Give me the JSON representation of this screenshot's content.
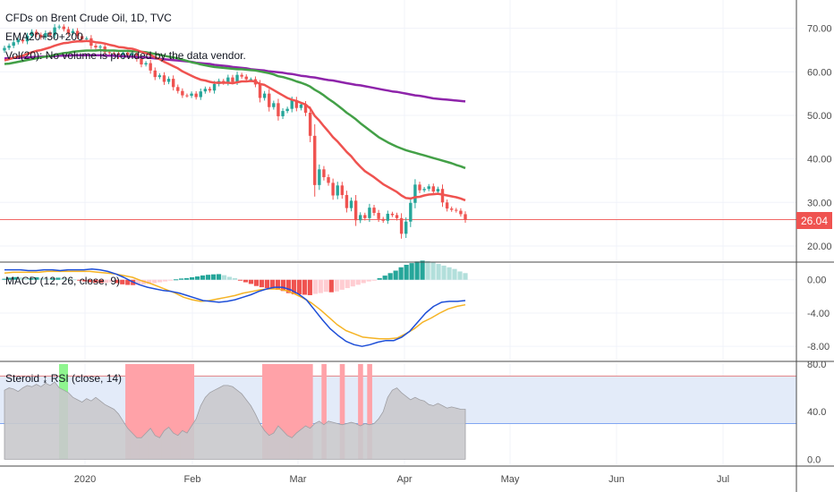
{
  "header": {
    "symbol": "CFDs on Brent Crude Oil, 1D, TVC",
    "ema_label": "EMA20+50+200",
    "vol_label": "Vol(20): No volume is provided by the data vendor."
  },
  "macd_label": "MACD (12, 26, close, 9)",
  "rsi_label": "Steroid ↨ RSI (close, 14)",
  "last_price": "26.04",
  "colors": {
    "up": "#26a69a",
    "down": "#ef5350",
    "ema20": "#ef5350",
    "ema50": "#43a047",
    "ema200": "#8e24aa",
    "macd": "#1e4fd8",
    "signal": "#f5b324",
    "hist_up": "#26a69a",
    "hist_up_fade": "#b2dfdb",
    "hist_down": "#ef5350",
    "hist_down_fade": "#ffcdd2",
    "rsi_fill": "#c9c9cc",
    "rsi_band": "#e3ebf9",
    "rsi_green": "#8ff58f",
    "rsi_red": "#ffa2a8"
  },
  "chart_data": [
    {
      "type": "candlestick",
      "title": "CFDs on Brent Crude Oil, 1D, TVC",
      "x_ticks": [
        "2020",
        "Feb",
        "Mar",
        "Apr",
        "May",
        "Jun",
        "Jul"
      ],
      "y_ticks": [
        20.0,
        30.0,
        40.0,
        50.0,
        60.0,
        70.0
      ],
      "ylim": [
        16.5,
        76.5
      ],
      "last_price": 26.04,
      "close": [
        65.5,
        66.0,
        66.8,
        67.4,
        67.0,
        68.3,
        69.2,
        68.5,
        67.9,
        68.9,
        68.4,
        70.2,
        70.4,
        69.8,
        68.9,
        69.4,
        68.2,
        67.5,
        67.7,
        66.0,
        65.6,
        65.8,
        64.5,
        64.3,
        64.2,
        63.5,
        64.4,
        63.8,
        64.3,
        63.0,
        61.7,
        62.0,
        60.3,
        58.8,
        59.2,
        57.7,
        58.4,
        56.5,
        55.6,
        54.6,
        54.5,
        55.0,
        54.2,
        55.5,
        56.1,
        55.7,
        57.2,
        57.9,
        57.5,
        58.7,
        57.7,
        59.3,
        58.9,
        58.3,
        58.3,
        57.1,
        54.0,
        55.0,
        51.9,
        52.8,
        49.8,
        51.0,
        51.5,
        53.5,
        51.7,
        52.5,
        50.6,
        45.3,
        34.0,
        37.6,
        35.8,
        34.5,
        31.6,
        33.9,
        31.7,
        28.7,
        30.4,
        25.9,
        27.1,
        26.4,
        28.8,
        27.6,
        26.2,
        25.8,
        27.4,
        27.1,
        26.4,
        22.8,
        25.6,
        29.9,
        34.1,
        32.8,
        33.1,
        33.7,
        32.5,
        33.1,
        30.0,
        28.6,
        28.3,
        28.1,
        27.3,
        26.0
      ],
      "ema20": [
        62.6,
        62.9,
        63.2,
        63.5,
        63.7,
        64.1,
        64.5,
        64.8,
        65.0,
        65.3,
        65.6,
        66.0,
        66.3,
        66.6,
        66.7,
        66.9,
        67.0,
        67.0,
        67.1,
        67.0,
        66.8,
        66.7,
        66.5,
        66.2,
        66.0,
        65.7,
        65.6,
        65.4,
        65.3,
        65.0,
        64.6,
        64.3,
        63.9,
        63.3,
        62.9,
        62.3,
        61.8,
        61.3,
        60.8,
        60.1,
        59.6,
        59.1,
        58.6,
        58.2,
        58.0,
        57.7,
        57.5,
        57.5,
        57.5,
        57.5,
        57.4,
        57.6,
        57.8,
        57.8,
        57.9,
        57.8,
        57.2,
        57.0,
        56.4,
        55.8,
        55.2,
        54.6,
        54.0,
        53.6,
        53.3,
        52.9,
        52.5,
        51.6,
        49.9,
        48.8,
        47.5,
        46.3,
        45.0,
        44.0,
        42.8,
        41.6,
        40.6,
        39.3,
        38.2,
        37.2,
        36.5,
        35.8,
        35.0,
        34.2,
        33.6,
        33.0,
        32.4,
        31.6,
        31.0,
        30.9,
        31.2,
        31.3,
        31.6,
        31.8,
        31.9,
        32.0,
        31.8,
        31.6,
        31.4,
        31.2,
        30.9,
        30.5
      ],
      "ema50": [
        61.8,
        61.9,
        62.1,
        62.3,
        62.5,
        62.7,
        62.9,
        63.1,
        63.3,
        63.5,
        63.6,
        63.9,
        64.1,
        64.3,
        64.4,
        64.6,
        64.7,
        64.8,
        64.9,
        64.9,
        64.9,
        65.0,
        64.9,
        64.9,
        64.9,
        64.8,
        64.8,
        64.8,
        64.7,
        64.7,
        64.6,
        64.5,
        64.3,
        64.1,
        63.9,
        63.7,
        63.5,
        63.3,
        63.1,
        62.8,
        62.5,
        62.2,
        62.0,
        61.7,
        61.5,
        61.3,
        61.1,
        61.0,
        60.9,
        60.8,
        60.7,
        60.6,
        60.6,
        60.5,
        60.4,
        60.3,
        60.1,
        59.9,
        59.7,
        59.4,
        59.0,
        58.8,
        58.5,
        58.2,
        57.8,
        57.5,
        57.1,
        56.6,
        55.9,
        55.3,
        54.6,
        53.8,
        53.1,
        52.3,
        51.5,
        50.6,
        49.9,
        49.1,
        48.2,
        47.4,
        46.6,
        45.8,
        45.0,
        44.4,
        43.8,
        43.3,
        42.8,
        42.4,
        42.0,
        41.7,
        41.4,
        41.1,
        40.8,
        40.5,
        40.2,
        39.9,
        39.6,
        39.3,
        39.0,
        38.6,
        38.3,
        37.9
      ],
      "ema200": [
        63.1,
        63.1,
        63.2,
        63.2,
        63.3,
        63.3,
        63.4,
        63.4,
        63.5,
        63.5,
        63.6,
        63.6,
        63.7,
        63.7,
        63.7,
        63.8,
        63.8,
        63.8,
        63.8,
        63.8,
        63.8,
        63.8,
        63.7,
        63.7,
        63.7,
        63.6,
        63.6,
        63.5,
        63.5,
        63.4,
        63.3,
        63.3,
        63.2,
        63.1,
        63.0,
        62.9,
        62.8,
        62.7,
        62.6,
        62.5,
        62.4,
        62.3,
        62.1,
        62.0,
        61.9,
        61.8,
        61.6,
        61.5,
        61.4,
        61.3,
        61.1,
        61.0,
        60.9,
        60.8,
        60.6,
        60.5,
        60.4,
        60.3,
        60.1,
        60.0,
        59.9,
        59.8,
        59.6,
        59.5,
        59.3,
        59.1,
        59.0,
        58.8,
        58.7,
        58.5,
        58.3,
        58.1,
        58.0,
        57.8,
        57.6,
        57.4,
        57.2,
        57.0,
        56.9,
        56.7,
        56.5,
        56.3,
        56.1,
        55.9,
        55.7,
        55.5,
        55.4,
        55.2,
        55.0,
        54.8,
        54.6,
        54.5,
        54.3,
        54.1,
        53.9,
        53.8,
        53.7,
        53.6,
        53.5,
        53.4,
        53.3,
        53.2
      ]
    },
    {
      "type": "line",
      "title": "MACD (12, 26, close, 9)",
      "y_ticks": [
        0.0,
        -4.0,
        -8.0
      ],
      "ylim": [
        -9.7,
        1.8
      ],
      "macd": [
        1.2,
        1.2,
        1.2,
        1.1,
        1.1,
        1.2,
        1.2,
        1.1,
        1.2,
        1.2,
        1.2,
        1.3,
        1.2,
        1.0,
        0.7,
        0.3,
        -0.2,
        -0.6,
        -0.9,
        -1.1,
        -1.3,
        -1.4,
        -1.6,
        -1.9,
        -2.2,
        -2.5,
        -2.6,
        -2.7,
        -2.6,
        -2.4,
        -2.1,
        -1.8,
        -1.4,
        -1.1,
        -0.9,
        -0.9,
        -1.2,
        -1.7,
        -2.4,
        -3.6,
        -4.8,
        -5.9,
        -6.7,
        -7.4,
        -7.8,
        -8.0,
        -7.8,
        -7.5,
        -7.3,
        -7.3,
        -6.9,
        -6.2,
        -5.1,
        -4.0,
        -3.2,
        -2.7,
        -2.6,
        -2.6,
        -2.5
      ],
      "signal": [
        0.8,
        0.9,
        0.9,
        0.9,
        0.9,
        1.0,
        1.0,
        1.0,
        1.0,
        1.0,
        1.0,
        0.9,
        0.8,
        0.7,
        0.5,
        0.3,
        -0.1,
        -0.4,
        -0.8,
        -1.2,
        -1.6,
        -2.1,
        -2.4,
        -2.6,
        -2.5,
        -2.3,
        -2.1,
        -1.9,
        -1.6,
        -1.4,
        -1.2,
        -1.1,
        -1.1,
        -1.3,
        -1.7,
        -2.2,
        -2.8,
        -3.6,
        -4.5,
        -5.4,
        -6.1,
        -6.5,
        -6.9,
        -7.0,
        -7.1,
        -7.1,
        -7.0,
        -6.5,
        -5.9,
        -5.1,
        -4.6,
        -4.0,
        -3.5,
        -3.2,
        -3.0
      ],
      "histogram": [
        0.12,
        0.25,
        0.32,
        0.28,
        0.18,
        0.2,
        0.3,
        0.22,
        0.15,
        0.18,
        0.25,
        0.2,
        0.1,
        0.05,
        -0.1,
        -0.2,
        -0.3,
        -0.35,
        -0.38,
        -0.35,
        -0.3,
        -0.4,
        -0.55,
        -0.62,
        -0.64,
        -0.6,
        -0.55,
        -0.5,
        -0.4,
        -0.3,
        -0.2,
        -0.1,
        0.05,
        0.15,
        0.2,
        0.3,
        0.4,
        0.52,
        0.6,
        0.65,
        0.68,
        0.55,
        0.35,
        0.2,
        -0.1,
        -0.3,
        -0.5,
        -0.75,
        -0.9,
        -1.0,
        -1.05,
        -1.2,
        -1.35,
        -1.6,
        -1.75,
        -1.75,
        -1.8,
        -1.85,
        -1.7,
        -1.6,
        -1.45,
        -1.5,
        -1.4,
        -1.2,
        -1.0,
        -0.8,
        -0.6,
        -0.4,
        -0.2,
        -0.05,
        0.2,
        0.5,
        0.8,
        1.1,
        1.5,
        1.8,
        2.0,
        2.2,
        2.3,
        2.25,
        2.1,
        1.9,
        1.7,
        1.5,
        1.3,
        1.0,
        0.8
      ]
    },
    {
      "type": "area",
      "title": "Steroid ↨ RSI (close, 14)",
      "y_ticks": [
        0.0,
        40.0,
        80.0
      ],
      "ylim": [
        -5,
        80
      ],
      "band": [
        30,
        70
      ],
      "rsi": [
        58,
        60,
        59,
        57,
        60,
        62,
        61,
        63,
        61,
        64,
        62,
        65,
        60,
        58,
        56,
        52,
        50,
        48,
        51,
        49,
        52,
        49,
        46,
        44,
        42,
        38,
        32,
        26,
        22,
        18,
        18,
        22,
        26,
        20,
        18,
        24,
        27,
        22,
        20,
        24,
        22,
        28,
        34,
        45,
        52,
        56,
        58,
        60,
        62,
        62,
        61,
        58,
        55,
        50,
        45,
        38,
        30,
        24,
        20,
        22,
        28,
        24,
        20,
        18,
        22,
        25,
        28,
        26,
        30,
        32,
        29,
        32,
        31,
        30,
        29,
        30,
        31,
        30,
        28,
        30,
        29,
        30,
        34,
        40,
        52,
        58,
        60,
        56,
        53,
        50,
        52,
        50,
        49,
        46,
        45,
        47,
        45,
        43,
        44,
        43,
        42,
        42
      ]
    }
  ]
}
